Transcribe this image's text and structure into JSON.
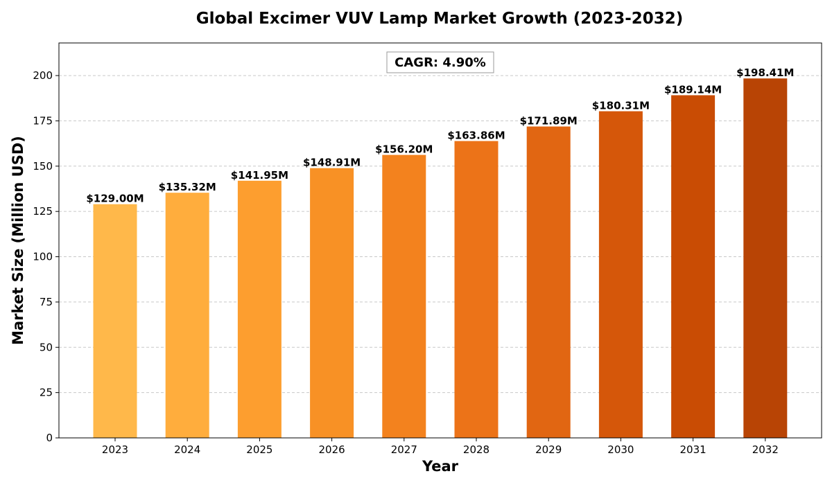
{
  "chart_data": {
    "type": "bar",
    "title": "Global Excimer VUV Lamp Market Growth (2023-2032)",
    "xlabel": "Year",
    "ylabel": "Market Size (Million USD)",
    "categories": [
      "2023",
      "2024",
      "2025",
      "2026",
      "2027",
      "2028",
      "2029",
      "2030",
      "2031",
      "2032"
    ],
    "values": [
      129.0,
      135.32,
      141.95,
      148.91,
      156.2,
      163.86,
      171.89,
      180.31,
      189.14,
      198.41
    ],
    "value_labels": [
      "$129.00M",
      "$135.32M",
      "$141.95M",
      "$148.91M",
      "$156.20M",
      "$163.86M",
      "$171.89M",
      "$180.31M",
      "$189.14M",
      "$198.41M"
    ],
    "bar_colors": [
      "#FFB84A",
      "#FFAD3D",
      "#FD9E2F",
      "#F89125",
      "#F3821E",
      "#EC7318",
      "#E16612",
      "#D5570A",
      "#C94C04",
      "#B84405"
    ],
    "ylim": [
      0,
      218
    ],
    "yticks": [
      0,
      25,
      50,
      75,
      100,
      125,
      150,
      175,
      200
    ],
    "grid": true,
    "annotation": "CAGR: 4.90%"
  }
}
